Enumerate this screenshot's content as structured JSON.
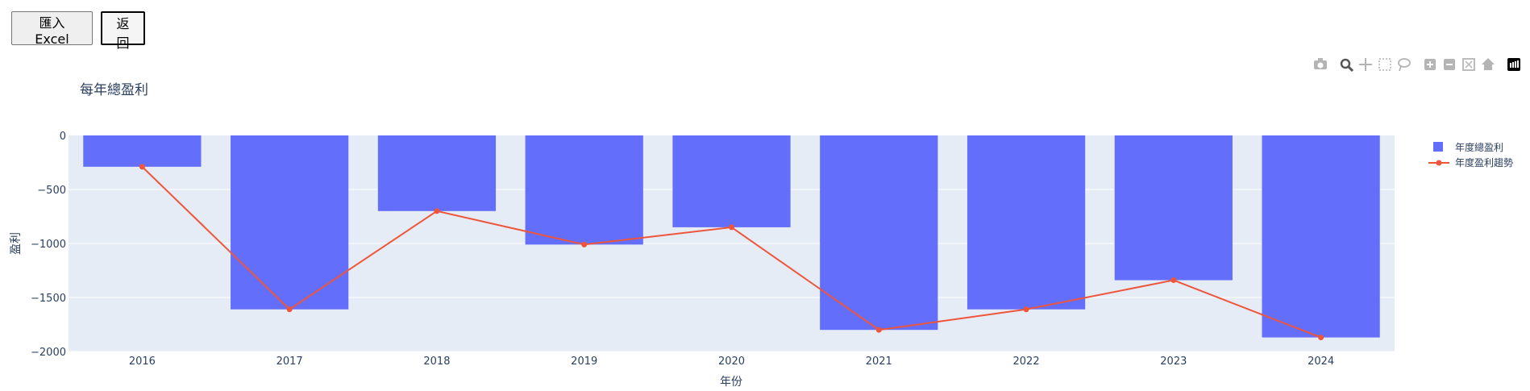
{
  "buttons": {
    "import_label": "匯入 Excel",
    "back_label": "返回"
  },
  "modebar": {
    "icons": [
      "camera-icon",
      "zoom-icon",
      "pan-icon",
      "box-select-icon",
      "lasso-select-icon",
      "zoom-in-icon",
      "zoom-out-icon",
      "autoscale-icon",
      "home-icon",
      "plotly-logo-icon"
    ]
  },
  "colors": {
    "bar": "#636efa",
    "line": "#ef553b",
    "plot_bg": "#e5ecf6",
    "text": "#2a3f5f"
  },
  "chart_data": {
    "type": "bar",
    "title": "每年總盈利",
    "xlabel": "年份",
    "ylabel": "盈利",
    "categories": [
      "2016",
      "2017",
      "2018",
      "2019",
      "2020",
      "2021",
      "2022",
      "2023",
      "2024"
    ],
    "ylim": [
      -2000,
      0
    ],
    "yticks": [
      0,
      -500,
      -1000,
      -1500,
      -2000
    ],
    "ytick_labels": [
      "0",
      "−500",
      "−1000",
      "−1500",
      "−2000"
    ],
    "grid": true,
    "legend_position": "top-right",
    "series": [
      {
        "name": "年度總盈利",
        "type": "bar",
        "color": "#636efa",
        "values": [
          -290,
          -1610,
          -700,
          -1010,
          -850,
          -1800,
          -1610,
          -1340,
          -1870
        ]
      },
      {
        "name": "年度盈利趨勢",
        "type": "line",
        "color": "#ef553b",
        "values": [
          -290,
          -1610,
          -700,
          -1010,
          -850,
          -1800,
          -1610,
          -1340,
          -1870
        ]
      }
    ]
  }
}
